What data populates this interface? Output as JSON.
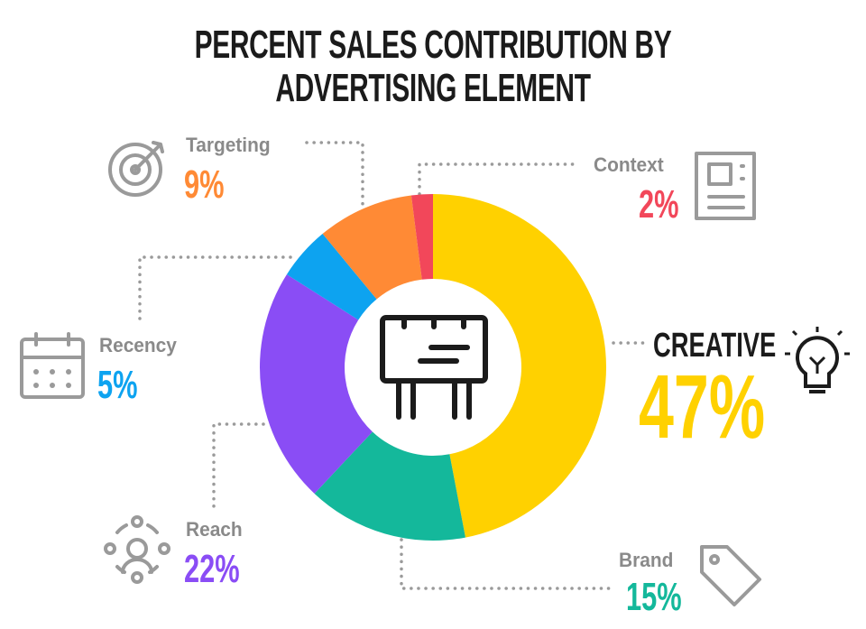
{
  "chart_data": {
    "type": "pie",
    "title": "PERCENT SALES CONTRIBUTION BY ADVERTISING ELEMENT",
    "categories": [
      "CREATIVE",
      "Brand",
      "Reach",
      "Recency",
      "Targeting",
      "Context"
    ],
    "values": [
      47,
      15,
      22,
      5,
      9,
      2
    ],
    "value_labels": [
      "47%",
      "15%",
      "22%",
      "5%",
      "9%",
      "2%"
    ],
    "colors": [
      "#FFD100",
      "#14B89B",
      "#8A4DF5",
      "#0DA3F0",
      "#FF8A35",
      "#F2475A"
    ],
    "donut": true
  }
}
